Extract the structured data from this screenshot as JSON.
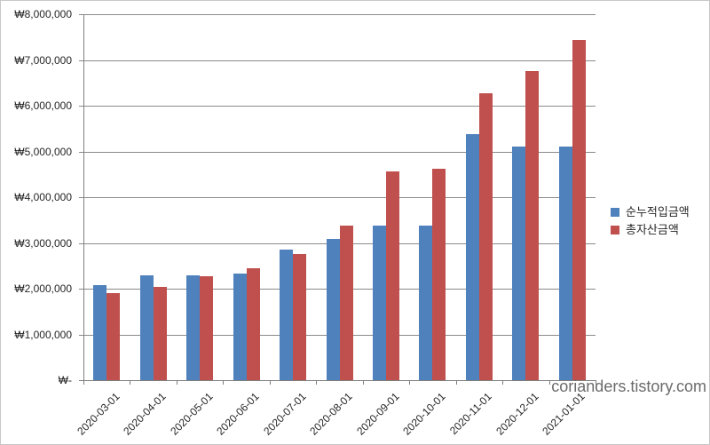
{
  "chart_data": {
    "type": "bar",
    "title": "",
    "xlabel": "",
    "ylabel": "",
    "categories": [
      "2020-03-01",
      "2020-04-01",
      "2020-05-01",
      "2020-06-01",
      "2020-07-01",
      "2020-08-01",
      "2020-09-01",
      "2020-10-01",
      "2020-11-01",
      "2020-12-01",
      "2021-01-01"
    ],
    "series": [
      {
        "name": "순누적입금액",
        "color": "#4F81BD",
        "values": [
          2070000,
          2290000,
          2290000,
          2330000,
          2860000,
          3080000,
          3370000,
          3380000,
          5370000,
          5100000,
          5100000
        ]
      },
      {
        "name": "총자산금액",
        "color": "#C0504D",
        "values": [
          1900000,
          2040000,
          2270000,
          2440000,
          2760000,
          3380000,
          4560000,
          4620000,
          6280000,
          6750000,
          7430000
        ]
      }
    ],
    "ylim": [
      0,
      8000000
    ],
    "y_tick_interval": 1000000,
    "y_tick_labels": [
      "₩-",
      "₩1,000,000",
      "₩2,000,000",
      "₩3,000,000",
      "₩4,000,000",
      "₩5,000,000",
      "₩6,000,000",
      "₩7,000,000",
      "₩8,000,000"
    ],
    "grid": true,
    "legend_position": "right"
  },
  "watermark": "corianders.tistory.com",
  "colors": {
    "series_blue": "#4F81BD",
    "series_red": "#C0504D",
    "gridline": "#8a8a8a",
    "axis": "#7f7f7f",
    "label_text": "#262626",
    "watermark_text": "#6b6b6b",
    "border": "#c8c8c8"
  }
}
